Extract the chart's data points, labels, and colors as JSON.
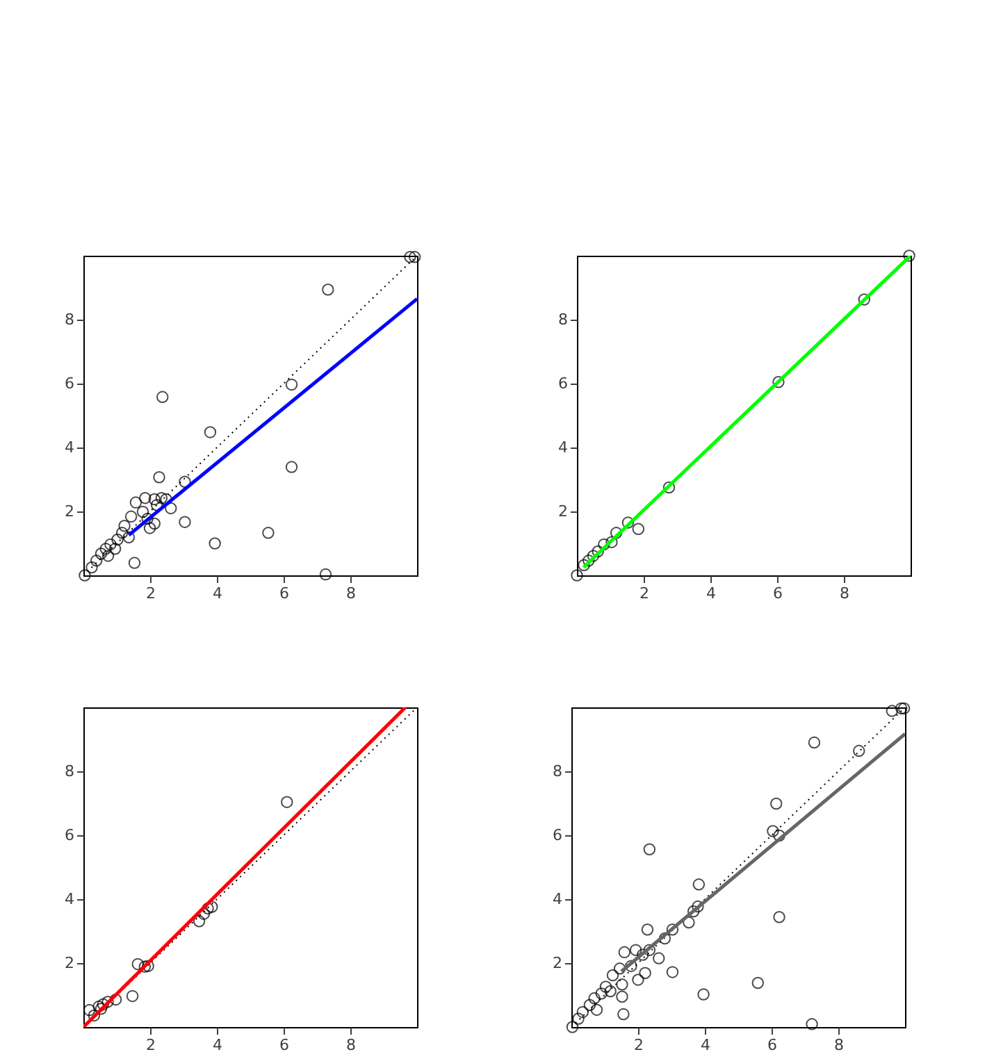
{
  "chart_data": [
    {
      "type": "scatter",
      "xlim": [
        0,
        10
      ],
      "ylim": [
        0,
        10
      ],
      "xticks": [
        2,
        4,
        6,
        8
      ],
      "yticks": [
        2,
        4,
        6,
        8
      ],
      "grid": false,
      "series": [
        {
          "type": "scatter",
          "color": "#000000",
          "marker": "circle",
          "x": [
            9.79,
            9.93,
            7.33,
            6.24,
            2.37,
            3.8,
            6.24,
            2.27,
            3.04,
            2.62,
            3.04,
            3.94,
            5.54,
            7.26,
            1.53,
            2.13,
            1.99,
            1.57,
            1.85,
            2.13,
            2.34,
            2.48,
            2.2,
            1.78,
            1.43,
            1.92,
            1.23,
            1.16,
            1.02,
            0.81,
            0.67,
            0.53,
            0.39,
            0.25,
            0.04,
            1.36,
            0.95,
            0.74
          ],
          "values": [
            9.96,
            9.96,
            8.94,
            5.97,
            5.58,
            4.48,
            3.39,
            3.07,
            2.93,
            2.1,
            1.67,
            1.0,
            1.33,
            0.03,
            0.39,
            1.62,
            1.48,
            2.28,
            2.42,
            2.38,
            2.42,
            2.38,
            2.2,
            1.99,
            1.84,
            1.77,
            1.55,
            1.33,
            1.12,
            0.97,
            0.83,
            0.68,
            0.46,
            0.25,
            0.0,
            1.19,
            0.83,
            0.61
          ]
        },
        {
          "type": "line",
          "color": "#000000",
          "line_style": "dotted",
          "x": [
            0,
            10
          ],
          "values": [
            0,
            10
          ]
        },
        {
          "type": "line",
          "color": "#0000ff",
          "x": [
            1.36,
            10
          ],
          "values": [
            1.26,
            8.65
          ]
        }
      ]
    },
    {
      "type": "scatter",
      "xlim": [
        0,
        10
      ],
      "ylim": [
        0,
        10
      ],
      "xticks": [
        2,
        4,
        6,
        8
      ],
      "yticks": [
        2,
        4,
        6,
        8
      ],
      "grid": false,
      "series": [
        {
          "type": "scatter",
          "color": "#000000",
          "marker": "circle",
          "x": [
            9.96,
            8.61,
            6.04,
            2.76,
            1.53,
            1.84,
            1.18,
            1.04,
            0.81,
            0.63,
            0.49,
            0.35,
            0.21,
            0.0
          ],
          "values": [
            10.0,
            8.63,
            6.05,
            2.75,
            1.65,
            1.45,
            1.33,
            1.04,
            0.97,
            0.75,
            0.61,
            0.46,
            0.32,
            0.0
          ]
        },
        {
          "type": "line",
          "color": "#00ff00",
          "x": [
            0.2,
            10
          ],
          "values": [
            0.25,
            10
          ]
        }
      ]
    },
    {
      "type": "scatter",
      "xlim": [
        0,
        10
      ],
      "ylim": [
        0,
        10
      ],
      "xticks": [
        2,
        4,
        6,
        8
      ],
      "yticks": [
        2,
        4,
        6,
        8
      ],
      "grid": false,
      "series": [
        {
          "type": "scatter",
          "color": "#000000",
          "marker": "circle",
          "x": [
            6.1,
            3.47,
            3.61,
            3.85,
            3.73,
            1.63,
            1.84,
            1.94,
            1.47,
            0.97,
            0.73,
            0.59,
            0.46,
            0.32,
            0.18,
            0.53
          ],
          "values": [
            7.04,
            3.31,
            3.54,
            3.76,
            3.71,
            1.97,
            1.89,
            1.91,
            0.97,
            0.86,
            0.79,
            0.71,
            0.64,
            0.36,
            0.53,
            0.57
          ]
        },
        {
          "type": "line",
          "color": "#000000",
          "line_style": "dotted",
          "x": [
            0,
            10
          ],
          "values": [
            0,
            10
          ]
        },
        {
          "type": "line",
          "color": "#ff0000",
          "x": [
            0,
            9.65
          ],
          "values": [
            0,
            10
          ]
        }
      ]
    },
    {
      "type": "scatter",
      "xlim": [
        0,
        10
      ],
      "ylim": [
        0,
        10
      ],
      "xticks": [
        2,
        4,
        6,
        8
      ],
      "yticks": [
        2,
        4,
        6,
        8
      ],
      "grid": false,
      "series": [
        {
          "type": "scatter",
          "color": "#000000",
          "marker": "circle",
          "x": [
            9.61,
            9.89,
            9.97,
            7.28,
            8.62,
            6.14,
            6.04,
            6.23,
            2.34,
            3.82,
            6.23,
            2.28,
            3.03,
            2.8,
            3.52,
            3.66,
            3.79,
            3.03,
            3.96,
            5.59,
            7.21,
            1.56,
            1.59,
            1.93,
            2.14,
            2.34,
            2.62,
            1.79,
            2.0,
            2.21,
            1.45,
            1.24,
            1.52,
            1.52,
            1.03,
            0.9,
            0.69,
            0.55,
            0.34,
            0.21,
            0.03,
            1.17,
            0.76
          ],
          "values": [
            9.89,
            9.97,
            9.97,
            8.9,
            8.64,
            6.99,
            6.13,
            5.99,
            5.56,
            4.46,
            3.44,
            3.05,
            3.05,
            2.77,
            3.27,
            3.62,
            3.77,
            1.72,
            1.02,
            1.38,
            0.09,
            0.4,
            2.34,
            2.41,
            2.26,
            2.41,
            2.15,
            1.91,
            1.48,
            1.69,
            1.83,
            1.62,
            1.33,
            0.95,
            1.26,
            1.05,
            0.9,
            0.69,
            0.47,
            0.26,
            0.0,
            1.12,
            0.54
          ]
        },
        {
          "type": "line",
          "color": "#000000",
          "line_style": "dotted",
          "x": [
            0,
            10
          ],
          "values": [
            0,
            10
          ]
        },
        {
          "type": "line",
          "color": "#666666",
          "x": [
            1.5,
            10
          ],
          "values": [
            1.74,
            9.17
          ]
        }
      ]
    }
  ]
}
